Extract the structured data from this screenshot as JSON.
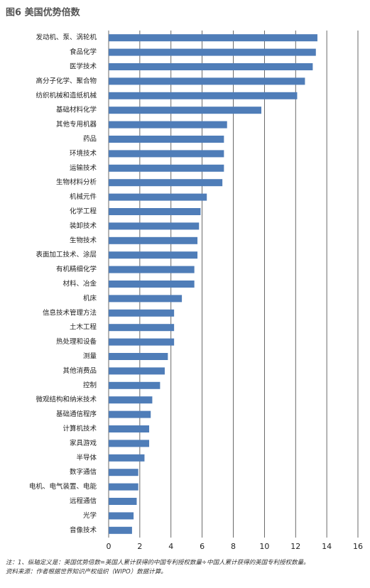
{
  "chart_data": {
    "type": "bar",
    "orientation": "horizontal",
    "title": "图6  美国优势倍数",
    "categories": [
      "发动机、泵、涡轮机",
      "食品化学",
      "医学技术",
      "高分子化学、聚合物",
      "纺织机械和造纸机械",
      "基础材料化学",
      "其他专用机器",
      "药品",
      "环境技术",
      "运输技术",
      "生物材料分析",
      "机械元件",
      "化学工程",
      "装卸技术",
      "生物技术",
      "表面加工技术、涂层",
      "有机精细化学",
      "材料、冶金",
      "机床",
      "信息技术管理方法",
      "土木工程",
      "热处理和设备",
      "测量",
      "其他消费品",
      "控制",
      "微观结构和纳米技术",
      "基础通信程序",
      "计算机技术",
      "家具游戏",
      "半导体",
      "数字通信",
      "电机、电气装置、电能",
      "远程通信",
      "光学",
      "音像技术"
    ],
    "values": [
      13.4,
      13.3,
      13.1,
      12.6,
      12.1,
      9.8,
      7.6,
      7.4,
      7.4,
      7.4,
      7.3,
      6.3,
      5.9,
      5.8,
      5.7,
      5.7,
      5.5,
      5.5,
      4.7,
      4.2,
      4.2,
      4.2,
      3.8,
      3.6,
      3.3,
      2.8,
      2.7,
      2.6,
      2.6,
      2.3,
      1.9,
      1.9,
      1.8,
      1.6,
      1.5
    ],
    "color": "#4f7db8",
    "xlim": [
      0,
      16
    ],
    "xticks": [
      0,
      2,
      4,
      6,
      8,
      10,
      12,
      14,
      16
    ],
    "grid": true,
    "notes": [
      "注：1、纵轴定义是：美国优势倍数=美国人累计获得的中国专利授权数量÷中国人累计获得的美国专利授权数量。",
      "资料来源：作者根据世界知识产权组织（WIPO）数据计算。"
    ]
  }
}
